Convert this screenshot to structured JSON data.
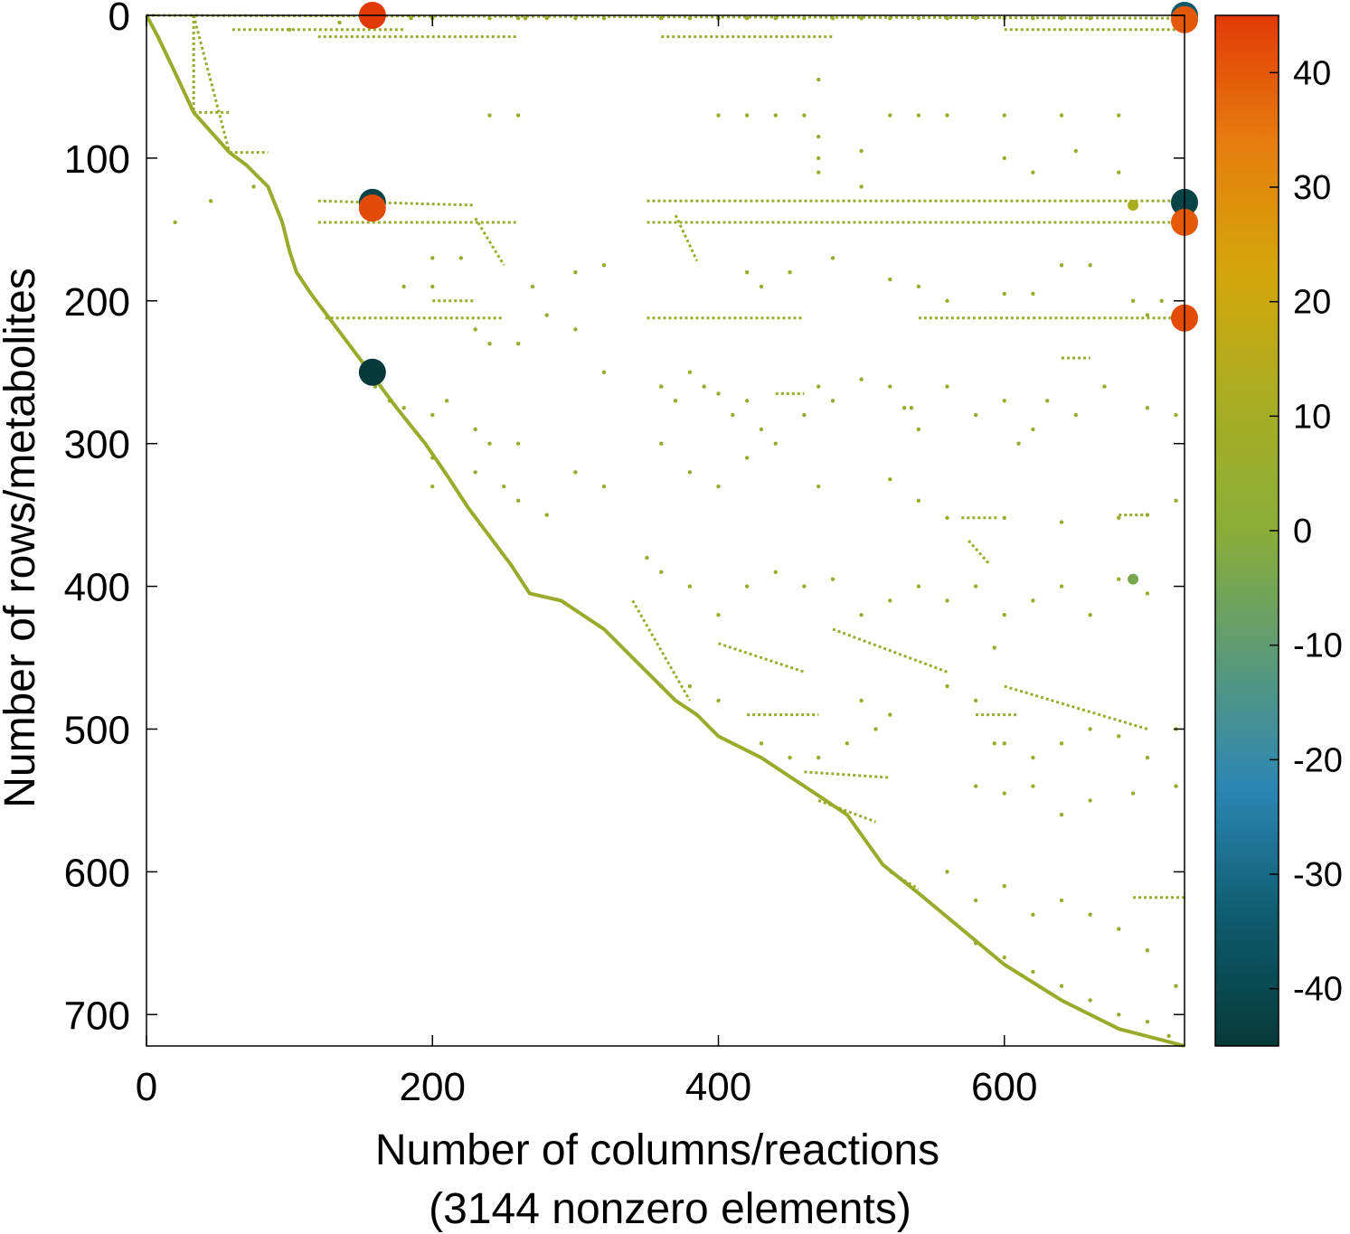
{
  "chart_data": {
    "type": "scatter",
    "title": "",
    "xlabel": "Number of columns/reactions",
    "xlabel_note": "(3144 nonzero elements)",
    "ylabel": "Number of rows/metabolites",
    "xlim": [
      0,
      726
    ],
    "ylim": [
      722,
      0
    ],
    "y_axis_inverted": true,
    "grid": false,
    "xticks": [
      0,
      200,
      400,
      600
    ],
    "yticks": [
      0,
      100,
      200,
      300,
      400,
      500,
      600,
      700
    ],
    "colorbar": {
      "range": [
        -45,
        45
      ],
      "ticks": [
        40,
        30,
        20,
        10,
        0,
        -10,
        -20,
        -30,
        -40
      ],
      "stops": [
        "#063a3a",
        "#0e5c6e",
        "#2c86b4",
        "#5a9a78",
        "#8aae38",
        "#a8ad23",
        "#d4a60a",
        "#e67e0e",
        "#e23a06"
      ]
    },
    "sparsity_color": "#9aab2c",
    "diagonal_path": [
      [
        0,
        0
      ],
      [
        8,
        15
      ],
      [
        20,
        40
      ],
      [
        33,
        68
      ],
      [
        58,
        96
      ],
      [
        70,
        105
      ],
      [
        85,
        120
      ],
      [
        95,
        145
      ],
      [
        100,
        165
      ],
      [
        105,
        180
      ],
      [
        115,
        195
      ],
      [
        130,
        215
      ],
      [
        145,
        235
      ],
      [
        160,
        255
      ],
      [
        175,
        275
      ],
      [
        195,
        300
      ],
      [
        210,
        322
      ],
      [
        225,
        345
      ],
      [
        240,
        365
      ],
      [
        255,
        385
      ],
      [
        268,
        405
      ],
      [
        290,
        410
      ],
      [
        320,
        430
      ],
      [
        350,
        460
      ],
      [
        370,
        480
      ],
      [
        385,
        490
      ],
      [
        400,
        505
      ],
      [
        430,
        520
      ],
      [
        460,
        540
      ],
      [
        490,
        560
      ],
      [
        515,
        595
      ],
      [
        540,
        615
      ],
      [
        570,
        640
      ],
      [
        600,
        665
      ],
      [
        640,
        690
      ],
      [
        680,
        710
      ],
      [
        726,
        722
      ]
    ],
    "segments": [
      [
        [
          33,
          0
        ],
        [
          33,
          68
        ]
      ],
      [
        [
          33,
          68
        ],
        [
          58,
          68
        ]
      ],
      [
        [
          33,
          0
        ],
        [
          58,
          96
        ]
      ],
      [
        [
          58,
          96
        ],
        [
          85,
          96
        ]
      ],
      [
        [
          0,
          0
        ],
        [
          726,
          2
        ]
      ],
      [
        [
          60,
          10
        ],
        [
          180,
          10
        ]
      ],
      [
        [
          120,
          15
        ],
        [
          260,
          15
        ]
      ],
      [
        [
          360,
          15
        ],
        [
          480,
          15
        ]
      ],
      [
        [
          600,
          10
        ],
        [
          726,
          10
        ]
      ],
      [
        [
          120,
          130
        ],
        [
          230,
          133
        ]
      ],
      [
        [
          350,
          130
        ],
        [
          726,
          130
        ]
      ],
      [
        [
          120,
          145
        ],
        [
          260,
          145
        ]
      ],
      [
        [
          350,
          145
        ],
        [
          726,
          145
        ]
      ],
      [
        [
          125,
          212
        ],
        [
          250,
          212
        ]
      ],
      [
        [
          350,
          212
        ],
        [
          460,
          212
        ]
      ],
      [
        [
          540,
          212
        ],
        [
          620,
          212
        ]
      ],
      [
        [
          620,
          212
        ],
        [
          726,
          212
        ]
      ],
      [
        [
          230,
          142
        ],
        [
          250,
          175
        ]
      ],
      [
        [
          370,
          140
        ],
        [
          385,
          172
        ]
      ],
      [
        [
          340,
          410
        ],
        [
          380,
          480
        ]
      ],
      [
        [
          570,
          352
        ],
        [
          595,
          352
        ]
      ],
      [
        [
          575,
          368
        ],
        [
          590,
          385
        ]
      ],
      [
        [
          400,
          440
        ],
        [
          460,
          460
        ]
      ],
      [
        [
          480,
          430
        ],
        [
          560,
          460
        ]
      ],
      [
        [
          600,
          470
        ],
        [
          700,
          500
        ]
      ],
      [
        [
          460,
          530
        ],
        [
          520,
          534
        ]
      ],
      [
        [
          470,
          550
        ],
        [
          510,
          565
        ]
      ],
      [
        [
          580,
          490
        ],
        [
          610,
          490
        ]
      ],
      [
        [
          200,
          200
        ],
        [
          230,
          200
        ]
      ],
      [
        [
          640,
          240
        ],
        [
          660,
          240
        ]
      ],
      [
        [
          680,
          350
        ],
        [
          700,
          350
        ]
      ],
      [
        [
          690,
          618
        ],
        [
          726,
          618
        ]
      ],
      [
        [
          520,
          600
        ],
        [
          540,
          612
        ]
      ],
      [
        [
          420,
          490
        ],
        [
          470,
          490
        ]
      ],
      [
        [
          440,
          265
        ],
        [
          460,
          265
        ]
      ]
    ],
    "scatter_points": [
      [
        20,
        145
      ],
      [
        45,
        130
      ],
      [
        75,
        120
      ],
      [
        100,
        10
      ],
      [
        135,
        5
      ],
      [
        150,
        2
      ],
      [
        185,
        2
      ],
      [
        200,
        2
      ],
      [
        240,
        2
      ],
      [
        260,
        2
      ],
      [
        265,
        2
      ],
      [
        280,
        2
      ],
      [
        300,
        2
      ],
      [
        320,
        2
      ],
      [
        360,
        2
      ],
      [
        380,
        2
      ],
      [
        400,
        2
      ],
      [
        420,
        2
      ],
      [
        440,
        2
      ],
      [
        460,
        2
      ],
      [
        480,
        2
      ],
      [
        500,
        2
      ],
      [
        520,
        2
      ],
      [
        540,
        2
      ],
      [
        560,
        2
      ],
      [
        580,
        2
      ],
      [
        600,
        2
      ],
      [
        620,
        2
      ],
      [
        640,
        2
      ],
      [
        660,
        2
      ],
      [
        240,
        70
      ],
      [
        260,
        70
      ],
      [
        400,
        70
      ],
      [
        420,
        70
      ],
      [
        440,
        70
      ],
      [
        460,
        70
      ],
      [
        520,
        70
      ],
      [
        540,
        70
      ],
      [
        560,
        70
      ],
      [
        600,
        70
      ],
      [
        640,
        70
      ],
      [
        680,
        70
      ],
      [
        470,
        45
      ],
      [
        470,
        85
      ],
      [
        470,
        100
      ],
      [
        470,
        110
      ],
      [
        500,
        95
      ],
      [
        500,
        120
      ],
      [
        600,
        100
      ],
      [
        620,
        110
      ],
      [
        650,
        95
      ],
      [
        680,
        110
      ],
      [
        200,
        170
      ],
      [
        220,
        170
      ],
      [
        270,
        190
      ],
      [
        300,
        180
      ],
      [
        320,
        175
      ],
      [
        420,
        180
      ],
      [
        430,
        190
      ],
      [
        450,
        180
      ],
      [
        480,
        170
      ],
      [
        520,
        185
      ],
      [
        540,
        190
      ],
      [
        560,
        200
      ],
      [
        600,
        195
      ],
      [
        620,
        195
      ],
      [
        640,
        175
      ],
      [
        660,
        175
      ],
      [
        690,
        200
      ],
      [
        700,
        210
      ],
      [
        710,
        200
      ],
      [
        180,
        190
      ],
      [
        200,
        190
      ],
      [
        230,
        220
      ],
      [
        240,
        230
      ],
      [
        260,
        230
      ],
      [
        280,
        210
      ],
      [
        300,
        220
      ],
      [
        320,
        250
      ],
      [
        160,
        260
      ],
      [
        170,
        270
      ],
      [
        180,
        275
      ],
      [
        200,
        280
      ],
      [
        210,
        270
      ],
      [
        230,
        290
      ],
      [
        240,
        300
      ],
      [
        260,
        300
      ],
      [
        360,
        260
      ],
      [
        370,
        270
      ],
      [
        380,
        250
      ],
      [
        390,
        260
      ],
      [
        400,
        265
      ],
      [
        410,
        280
      ],
      [
        420,
        270
      ],
      [
        430,
        290
      ],
      [
        440,
        300
      ],
      [
        460,
        280
      ],
      [
        470,
        260
      ],
      [
        480,
        270
      ],
      [
        500,
        255
      ],
      [
        520,
        260
      ],
      [
        530,
        275
      ],
      [
        540,
        290
      ],
      [
        560,
        260
      ],
      [
        580,
        280
      ],
      [
        600,
        270
      ],
      [
        610,
        300
      ],
      [
        620,
        290
      ],
      [
        630,
        270
      ],
      [
        650,
        280
      ],
      [
        670,
        260
      ],
      [
        700,
        275
      ],
      [
        720,
        280
      ],
      [
        200,
        310
      ],
      [
        230,
        320
      ],
      [
        250,
        330
      ],
      [
        260,
        340
      ],
      [
        280,
        350
      ],
      [
        300,
        320
      ],
      [
        320,
        330
      ],
      [
        420,
        310
      ],
      [
        470,
        330
      ],
      [
        520,
        325
      ],
      [
        540,
        340
      ],
      [
        560,
        352
      ],
      [
        600,
        352
      ],
      [
        640,
        355
      ],
      [
        680,
        352
      ],
      [
        700,
        350
      ],
      [
        720,
        340
      ],
      [
        350,
        380
      ],
      [
        360,
        390
      ],
      [
        380,
        400
      ],
      [
        400,
        420
      ],
      [
        420,
        400
      ],
      [
        440,
        390
      ],
      [
        460,
        400
      ],
      [
        480,
        395
      ],
      [
        500,
        420
      ],
      [
        520,
        410
      ],
      [
        540,
        400
      ],
      [
        560,
        410
      ],
      [
        580,
        400
      ],
      [
        600,
        420
      ],
      [
        620,
        410
      ],
      [
        640,
        400
      ],
      [
        660,
        420
      ],
      [
        680,
        395
      ],
      [
        700,
        405
      ],
      [
        360,
        470
      ],
      [
        380,
        470
      ],
      [
        400,
        480
      ],
      [
        430,
        510
      ],
      [
        450,
        520
      ],
      [
        470,
        520
      ],
      [
        490,
        510
      ],
      [
        500,
        480
      ],
      [
        510,
        500
      ],
      [
        520,
        490
      ],
      [
        560,
        470
      ],
      [
        580,
        480
      ],
      [
        600,
        510
      ],
      [
        620,
        520
      ],
      [
        640,
        510
      ],
      [
        660,
        500
      ],
      [
        680,
        505
      ],
      [
        700,
        520
      ],
      [
        720,
        500
      ],
      [
        580,
        540
      ],
      [
        600,
        545
      ],
      [
        620,
        540
      ],
      [
        640,
        560
      ],
      [
        660,
        550
      ],
      [
        690,
        545
      ],
      [
        720,
        540
      ],
      [
        560,
        600
      ],
      [
        580,
        620
      ],
      [
        600,
        610
      ],
      [
        620,
        630
      ],
      [
        640,
        620
      ],
      [
        660,
        630
      ],
      [
        680,
        640
      ],
      [
        700,
        655
      ],
      [
        720,
        680
      ],
      [
        580,
        650
      ],
      [
        600,
        660
      ],
      [
        620,
        670
      ],
      [
        640,
        680
      ],
      [
        660,
        690
      ],
      [
        680,
        700
      ],
      [
        700,
        705
      ],
      [
        715,
        715
      ],
      [
        360,
        300
      ],
      [
        380,
        320
      ],
      [
        400,
        330
      ],
      [
        200,
        330
      ],
      [
        360,
        260
      ],
      [
        535,
        275
      ],
      [
        593,
        443
      ],
      [
        593,
        510
      ]
    ],
    "highlights": [
      {
        "x": 158,
        "y": 0,
        "value": 45
      },
      {
        "x": 726,
        "y": 0,
        "value": -35
      },
      {
        "x": 726,
        "y": 3,
        "value": 40
      },
      {
        "x": 158,
        "y": 131,
        "value": -42
      },
      {
        "x": 158,
        "y": 135,
        "value": 42
      },
      {
        "x": 726,
        "y": 131,
        "value": -42
      },
      {
        "x": 726,
        "y": 145,
        "value": 40
      },
      {
        "x": 726,
        "y": 212,
        "value": 42
      },
      {
        "x": 158,
        "y": 250,
        "value": -45
      },
      {
        "x": 690,
        "y": 133,
        "value": 12
      },
      {
        "x": 690,
        "y": 395,
        "value": -4
      }
    ]
  }
}
